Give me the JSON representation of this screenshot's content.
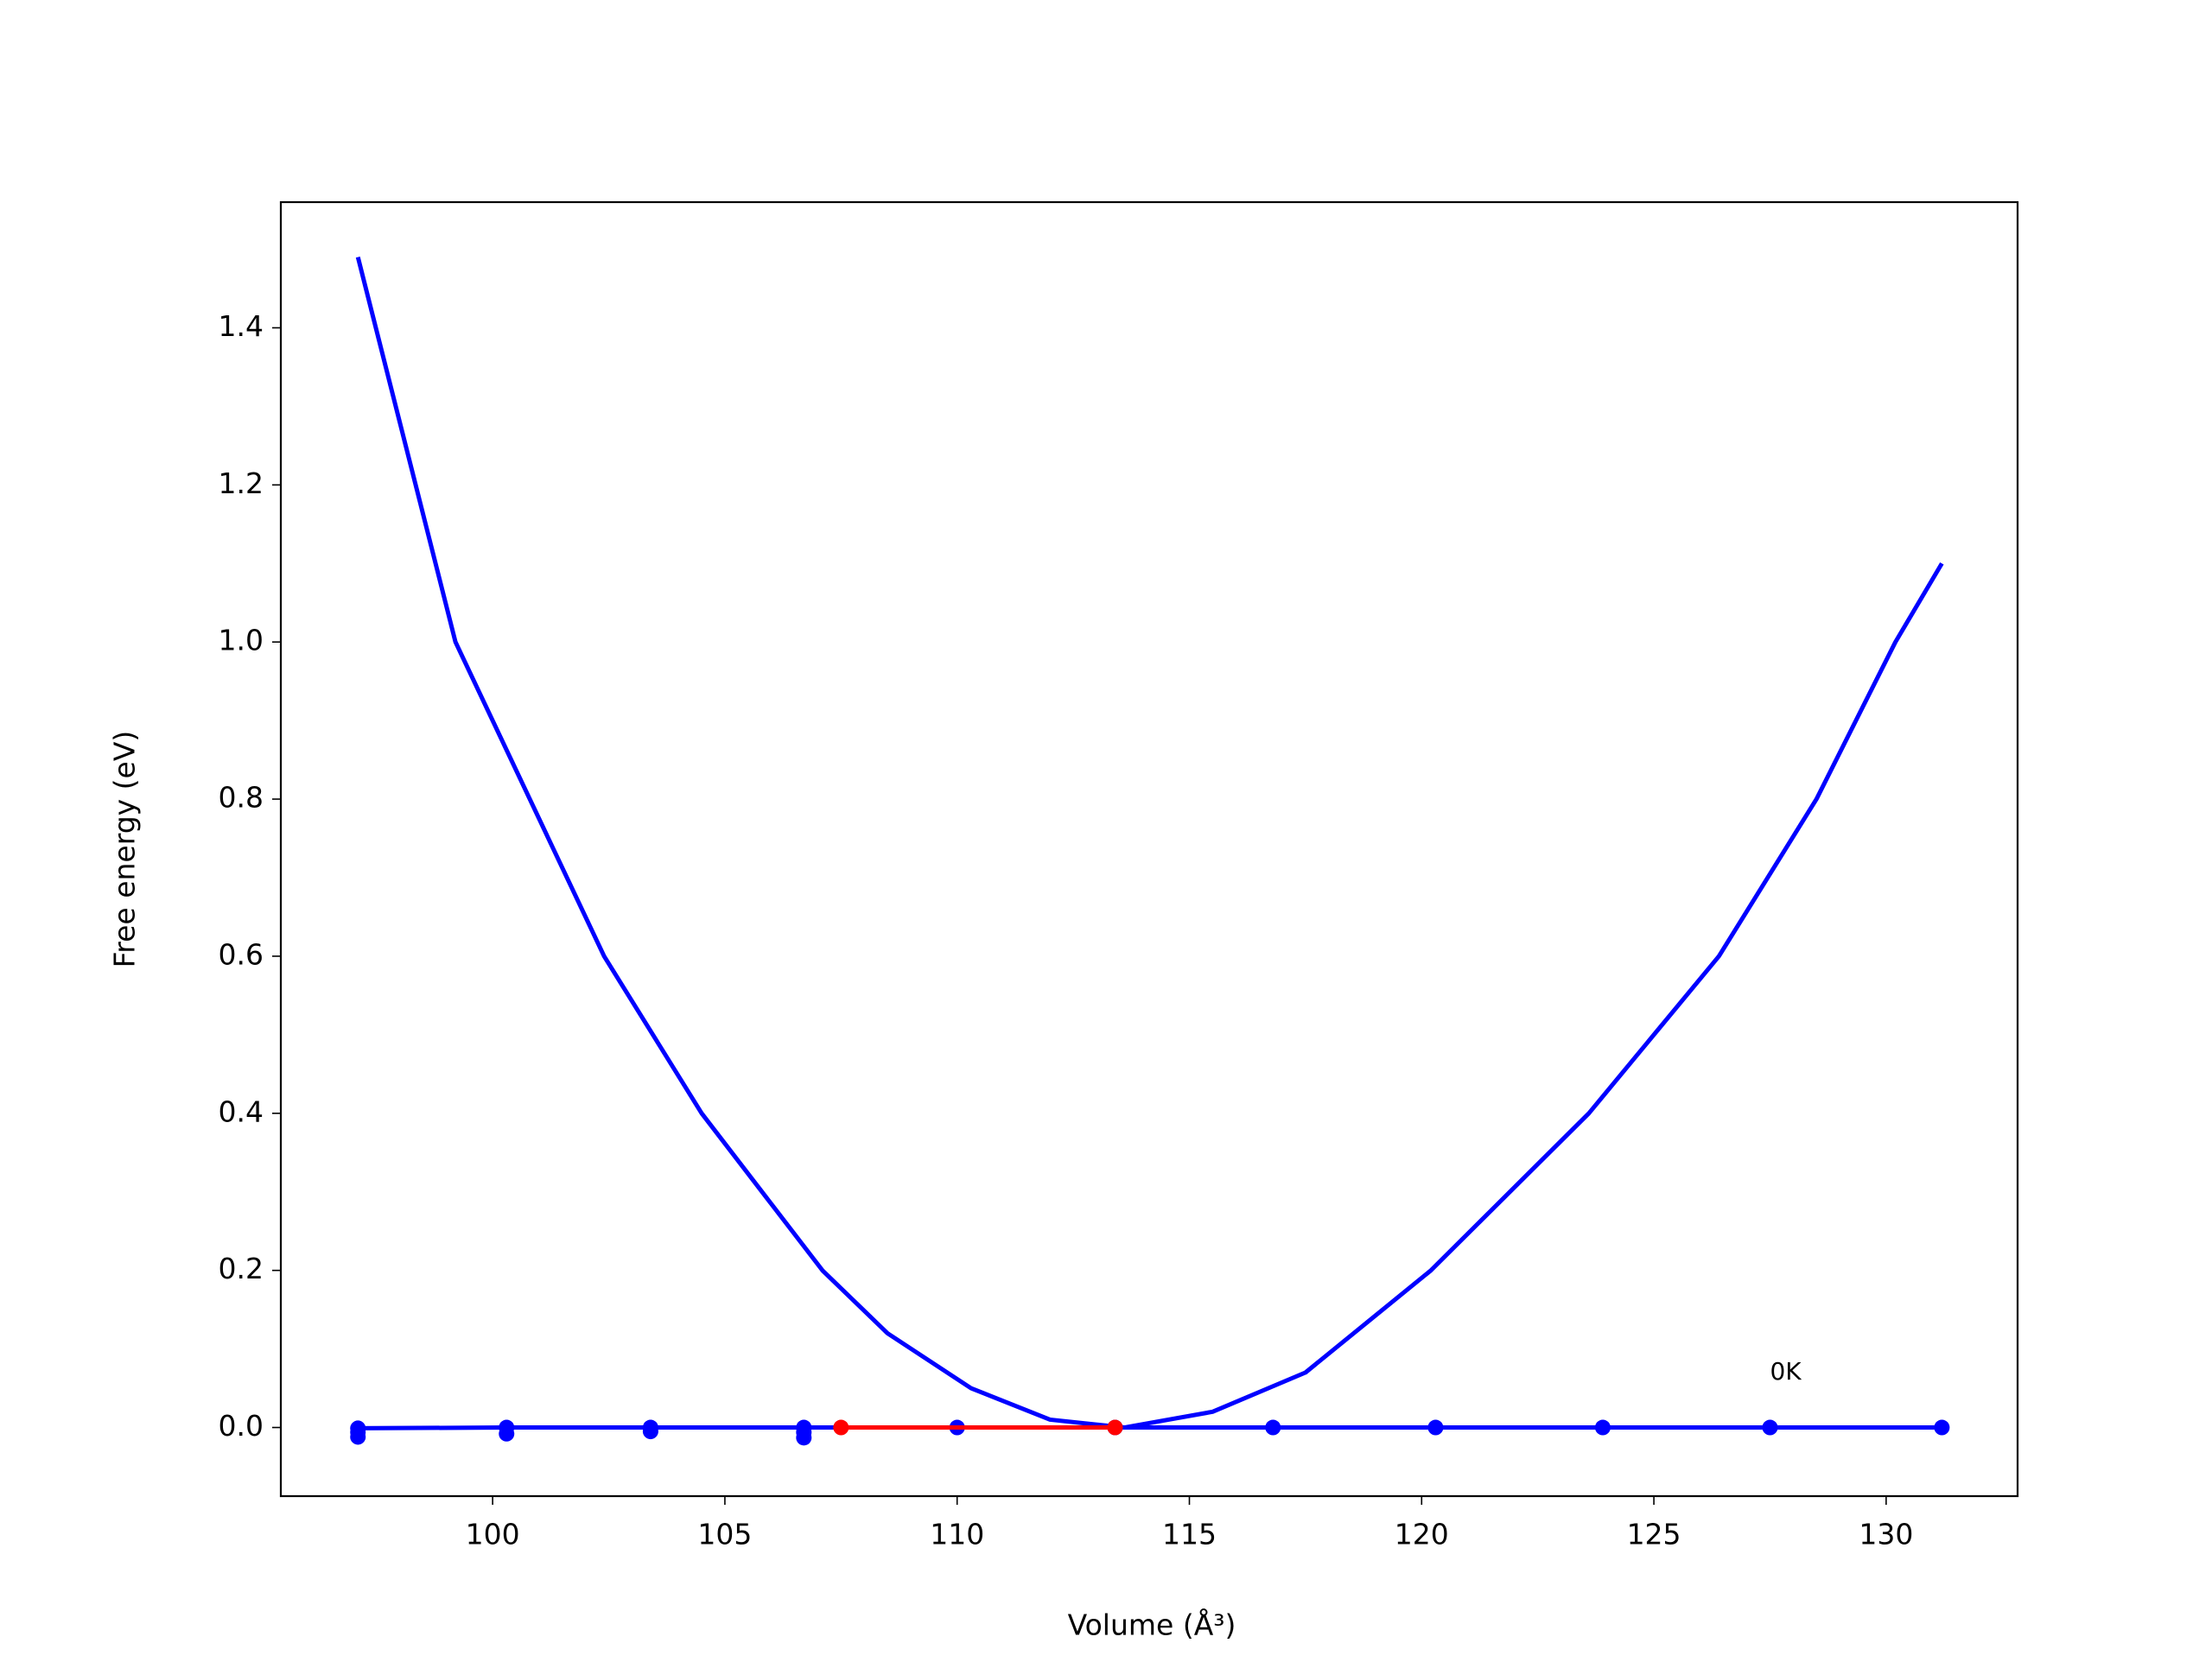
{
  "chart_data": {
    "type": "line",
    "xlabel": "Volume (Å³)",
    "ylabel": "Free energy (eV)",
    "xlim": [
      95.44,
      132.83
    ],
    "ylim": [
      -0.0874,
      1.56
    ],
    "xticks": [
      100,
      105,
      110,
      115,
      120,
      125,
      130
    ],
    "yticks": [
      {
        "value": 0,
        "label": "0.0"
      },
      0.2,
      0.4,
      0.6,
      0.8,
      {
        "value": 1,
        "label": "1.0"
      },
      1.2,
      1.4
    ],
    "grid": false,
    "series": [
      {
        "color": "#0000ff",
        "mode": "line",
        "x": [
          97.1,
          98.0,
          99.2,
          100.8,
          102.4,
          104.5,
          107.1,
          108.5,
          110.3,
          112.0,
          113.6,
          115.5,
          117.5,
          120.2,
          123.6,
          126.4,
          128.5,
          130.2,
          131.2
        ],
        "values": [
          1.49,
          1.28,
          1.0,
          0.8,
          0.6,
          0.4,
          0.2,
          0.12,
          0.05,
          0.01,
          0,
          0.02,
          0.07,
          0.2,
          0.4,
          0.6,
          0.8,
          1.0,
          1.1
        ]
      },
      {
        "color": "#0000ff",
        "mode": "line+markers",
        "x": [
          97.1,
          100.3,
          103.4,
          106.7,
          110.0,
          113.4,
          116.8,
          120.3,
          123.9,
          127.5,
          131.2
        ],
        "values": [
          -0.001,
          0,
          0,
          0,
          0,
          0,
          0,
          0,
          0,
          0,
          0
        ]
      },
      {
        "color": "#0000ff",
        "mode": "markers",
        "x": [
          97.1,
          97.1,
          100.3,
          103.4,
          106.7,
          106.7
        ],
        "values": [
          -0.006,
          -0.012,
          -0.008,
          -0.005,
          -0.006,
          -0.013
        ]
      },
      {
        "color": "#ff0000",
        "mode": "line+markers",
        "x": [
          107.5,
          113.4
        ],
        "values": [
          0,
          0
        ]
      }
    ],
    "annotations": [
      {
        "text": "0K",
        "x": 127.5,
        "y": 0.07
      }
    ]
  }
}
